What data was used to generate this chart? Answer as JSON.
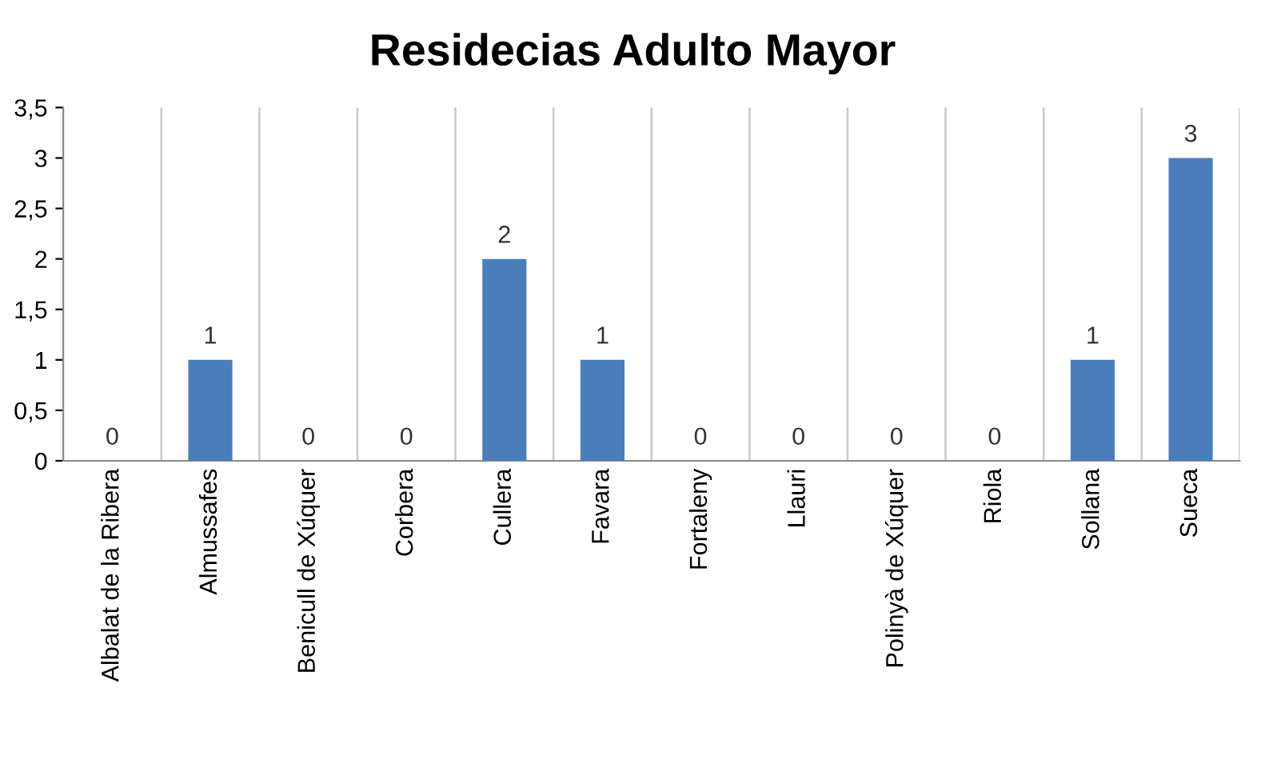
{
  "chart_data": {
    "type": "bar",
    "title": "Residecias Adulto Mayor",
    "categories": [
      "Albalat de la Ribera",
      "Almussafes",
      "Benicull de Xúquer",
      "Corbera",
      "Cullera",
      "Favara",
      "Fortaleny",
      "Llauri",
      "Polinyà de Xúquer",
      "Riola",
      "Sollana",
      "Sueca"
    ],
    "values": [
      0,
      1,
      0,
      0,
      2,
      1,
      0,
      0,
      0,
      0,
      1,
      3
    ],
    "color": "#4a7ebb",
    "ylim": [
      0,
      3.5
    ],
    "yticks": [
      0,
      {
        "value": 0.5,
        "label": "0,5"
      },
      1,
      {
        "value": 1.5,
        "label": "1,5"
      },
      2,
      {
        "value": 2.5,
        "label": "2,5"
      },
      3,
      {
        "value": 3.5,
        "label": "3,5"
      }
    ],
    "grid": "x",
    "data_labels": true
  }
}
